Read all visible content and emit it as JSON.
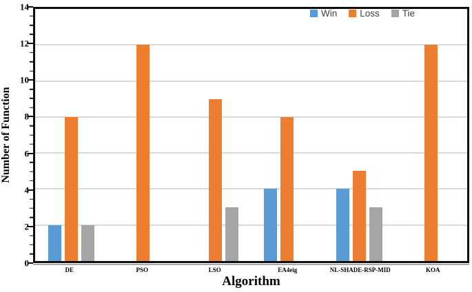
{
  "chart_data": {
    "type": "bar",
    "title": "",
    "xlabel": "Algorithm",
    "ylabel": "Number of Function",
    "categories": [
      "DE",
      "PSO",
      "LSO",
      "EA4eig",
      "NL-SHADE-RSP-MID",
      "KOA"
    ],
    "series": [
      {
        "name": "Win",
        "color": "#5B9BD5",
        "values": [
          2,
          0,
          0,
          4,
          4,
          0
        ]
      },
      {
        "name": "Loss",
        "color": "#ED7D31",
        "values": [
          8,
          12,
          9,
          8,
          5,
          12
        ]
      },
      {
        "name": "Tie",
        "color": "#A5A5A5",
        "values": [
          2,
          0,
          3,
          0,
          3,
          0
        ]
      }
    ],
    "ylim": [
      0,
      14
    ],
    "yticks": [
      0,
      2,
      4,
      6,
      8,
      10,
      12,
      14
    ],
    "minor_tick_step": 0.5,
    "grid": true,
    "legend_position": "top-right",
    "style": {
      "gridline_color": "#D9D9D9",
      "axis_color": "#0F0F0F",
      "legend_text_color": "#3F3F3F",
      "axis_shadow_color": "#A8A8A8"
    }
  }
}
